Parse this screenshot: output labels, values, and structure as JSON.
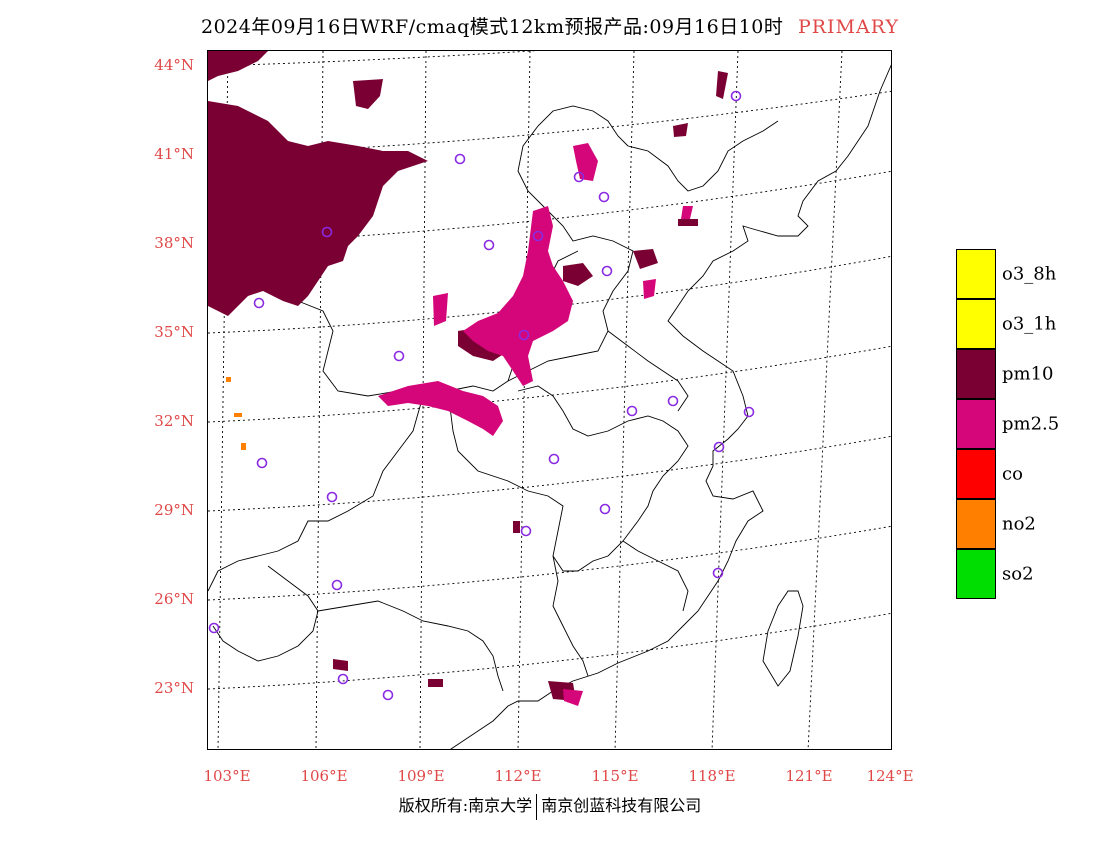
{
  "title": {
    "text": "2024年09月16日WRF/cmaq模式12km预报产品:09月16日10时",
    "tag": "PRIMARY"
  },
  "axes": {
    "lat_labels": [
      "44°N",
      "41°N",
      "38°N",
      "35°N",
      "32°N",
      "29°N",
      "26°N",
      "23°N"
    ],
    "lon_labels": [
      "103°E",
      "106°E",
      "109°E",
      "112°E",
      "115°E",
      "118°E",
      "121°E",
      "124°E"
    ]
  },
  "legend": {
    "items": [
      {
        "label": "o3_8h",
        "color": "#ffff00"
      },
      {
        "label": "o3_1h",
        "color": "#ffff00"
      },
      {
        "label": "pm10",
        "color": "#7a0033"
      },
      {
        "label": "pm2.5",
        "color": "#d4067a"
      },
      {
        "label": "co",
        "color": "#ff0000"
      },
      {
        "label": "no2",
        "color": "#ff8000"
      },
      {
        "label": "so2",
        "color": "#00dd00"
      }
    ]
  },
  "footer": {
    "left": "版权所有:南京大学",
    "right": "南京创蓝科技有限公司"
  },
  "colors": {
    "pm10": "#7a0033",
    "pm25": "#d4067a",
    "no2": "#ff8000",
    "station_marker": "#8a2be2",
    "label_red": "#e04848"
  }
}
